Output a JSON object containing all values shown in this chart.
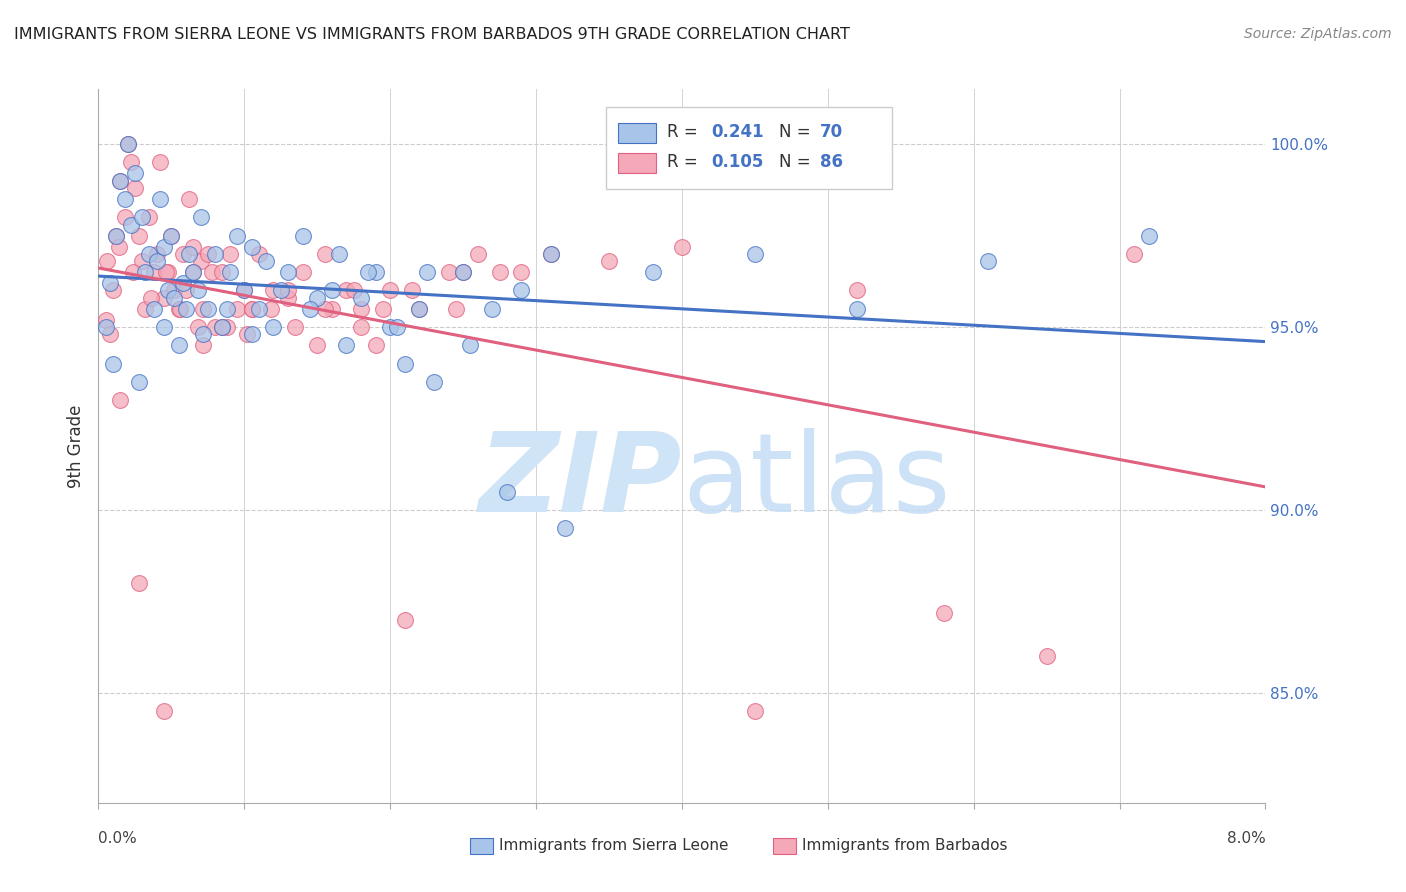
{
  "title": "IMMIGRANTS FROM SIERRA LEONE VS IMMIGRANTS FROM BARBADOS 9TH GRADE CORRELATION CHART",
  "source": "Source: ZipAtlas.com",
  "ylabel": "9th Grade",
  "yticks": [
    85.0,
    90.0,
    95.0,
    100.0
  ],
  "ytick_labels": [
    "85.0%",
    "90.0%",
    "95.0%",
    "100.0%"
  ],
  "xlim": [
    0.0,
    8.0
  ],
  "ylim": [
    82.0,
    101.5
  ],
  "legend_r1": "0.241",
  "legend_n1": "70",
  "legend_r2": "0.105",
  "legend_n2": "86",
  "series1_color": "#a8c4e8",
  "series2_color": "#f4a8b8",
  "line1_color": "#4472c4",
  "line2_color": "#e06080",
  "watermark_color": "#d0e4f7",
  "sierra_leone_x": [
    0.05,
    0.08,
    0.12,
    0.15,
    0.18,
    0.2,
    0.22,
    0.25,
    0.3,
    0.32,
    0.35,
    0.38,
    0.4,
    0.42,
    0.45,
    0.48,
    0.5,
    0.52,
    0.55,
    0.58,
    0.6,
    0.62,
    0.65,
    0.7,
    0.72,
    0.75,
    0.8,
    0.85,
    0.9,
    0.95,
    1.0,
    1.05,
    1.1,
    1.15,
    1.2,
    1.3,
    1.4,
    1.5,
    1.6,
    1.7,
    1.8,
    1.9,
    2.0,
    2.1,
    2.2,
    2.3,
    2.5,
    2.7,
    2.9,
    3.1,
    0.1,
    0.28,
    0.45,
    0.68,
    0.88,
    1.05,
    1.25,
    1.45,
    1.65,
    1.85,
    2.05,
    2.25,
    2.55,
    2.8,
    3.2,
    3.8,
    4.5,
    5.2,
    6.1,
    7.2
  ],
  "sierra_leone_y": [
    95.0,
    96.2,
    97.5,
    99.0,
    98.5,
    100.0,
    97.8,
    99.2,
    98.0,
    96.5,
    97.0,
    95.5,
    96.8,
    98.5,
    97.2,
    96.0,
    97.5,
    95.8,
    94.5,
    96.2,
    95.5,
    97.0,
    96.5,
    98.0,
    94.8,
    95.5,
    97.0,
    95.0,
    96.5,
    97.5,
    96.0,
    97.2,
    95.5,
    96.8,
    95.0,
    96.5,
    97.5,
    95.8,
    96.0,
    94.5,
    95.8,
    96.5,
    95.0,
    94.0,
    95.5,
    93.5,
    96.5,
    95.5,
    96.0,
    97.0,
    94.0,
    93.5,
    95.0,
    96.0,
    95.5,
    94.8,
    96.0,
    95.5,
    97.0,
    96.5,
    95.0,
    96.5,
    94.5,
    90.5,
    89.5,
    96.5,
    97.0,
    95.5,
    96.8,
    97.5
  ],
  "barbados_x": [
    0.05,
    0.08,
    0.1,
    0.12,
    0.15,
    0.18,
    0.2,
    0.22,
    0.25,
    0.28,
    0.3,
    0.32,
    0.35,
    0.38,
    0.4,
    0.42,
    0.45,
    0.48,
    0.5,
    0.52,
    0.55,
    0.58,
    0.6,
    0.62,
    0.65,
    0.68,
    0.7,
    0.72,
    0.75,
    0.78,
    0.8,
    0.85,
    0.9,
    0.95,
    1.0,
    1.05,
    1.1,
    1.2,
    1.3,
    1.4,
    1.5,
    1.6,
    1.7,
    1.8,
    1.9,
    2.0,
    2.2,
    2.4,
    2.6,
    2.9,
    0.06,
    0.14,
    0.24,
    0.36,
    0.46,
    0.56,
    0.72,
    0.88,
    1.02,
    1.18,
    1.35,
    1.55,
    1.75,
    1.95,
    2.15,
    2.45,
    2.75,
    3.1,
    3.5,
    4.0,
    4.5,
    5.2,
    5.8,
    6.5,
    7.1,
    0.15,
    0.28,
    0.45,
    0.65,
    0.85,
    1.05,
    1.3,
    1.55,
    1.8,
    2.1,
    2.5
  ],
  "barbados_y": [
    95.2,
    94.8,
    96.0,
    97.5,
    99.0,
    98.0,
    100.0,
    99.5,
    98.8,
    97.5,
    96.8,
    95.5,
    98.0,
    96.5,
    97.0,
    99.5,
    95.8,
    96.5,
    97.5,
    96.0,
    95.5,
    97.0,
    96.0,
    98.5,
    97.2,
    95.0,
    96.8,
    95.5,
    97.0,
    96.5,
    95.0,
    96.5,
    97.0,
    95.5,
    96.0,
    95.5,
    97.0,
    96.0,
    95.8,
    96.5,
    94.5,
    95.5,
    96.0,
    95.0,
    94.5,
    96.0,
    95.5,
    96.5,
    97.0,
    96.5,
    96.8,
    97.2,
    96.5,
    95.8,
    96.5,
    95.5,
    94.5,
    95.0,
    94.8,
    95.5,
    95.0,
    95.5,
    96.0,
    95.5,
    96.0,
    95.5,
    96.5,
    97.0,
    96.8,
    97.2,
    84.5,
    96.0,
    87.2,
    86.0,
    97.0,
    93.0,
    88.0,
    84.5,
    96.5,
    95.0,
    95.5,
    96.0,
    97.0,
    95.5,
    87.0,
    96.5
  ]
}
